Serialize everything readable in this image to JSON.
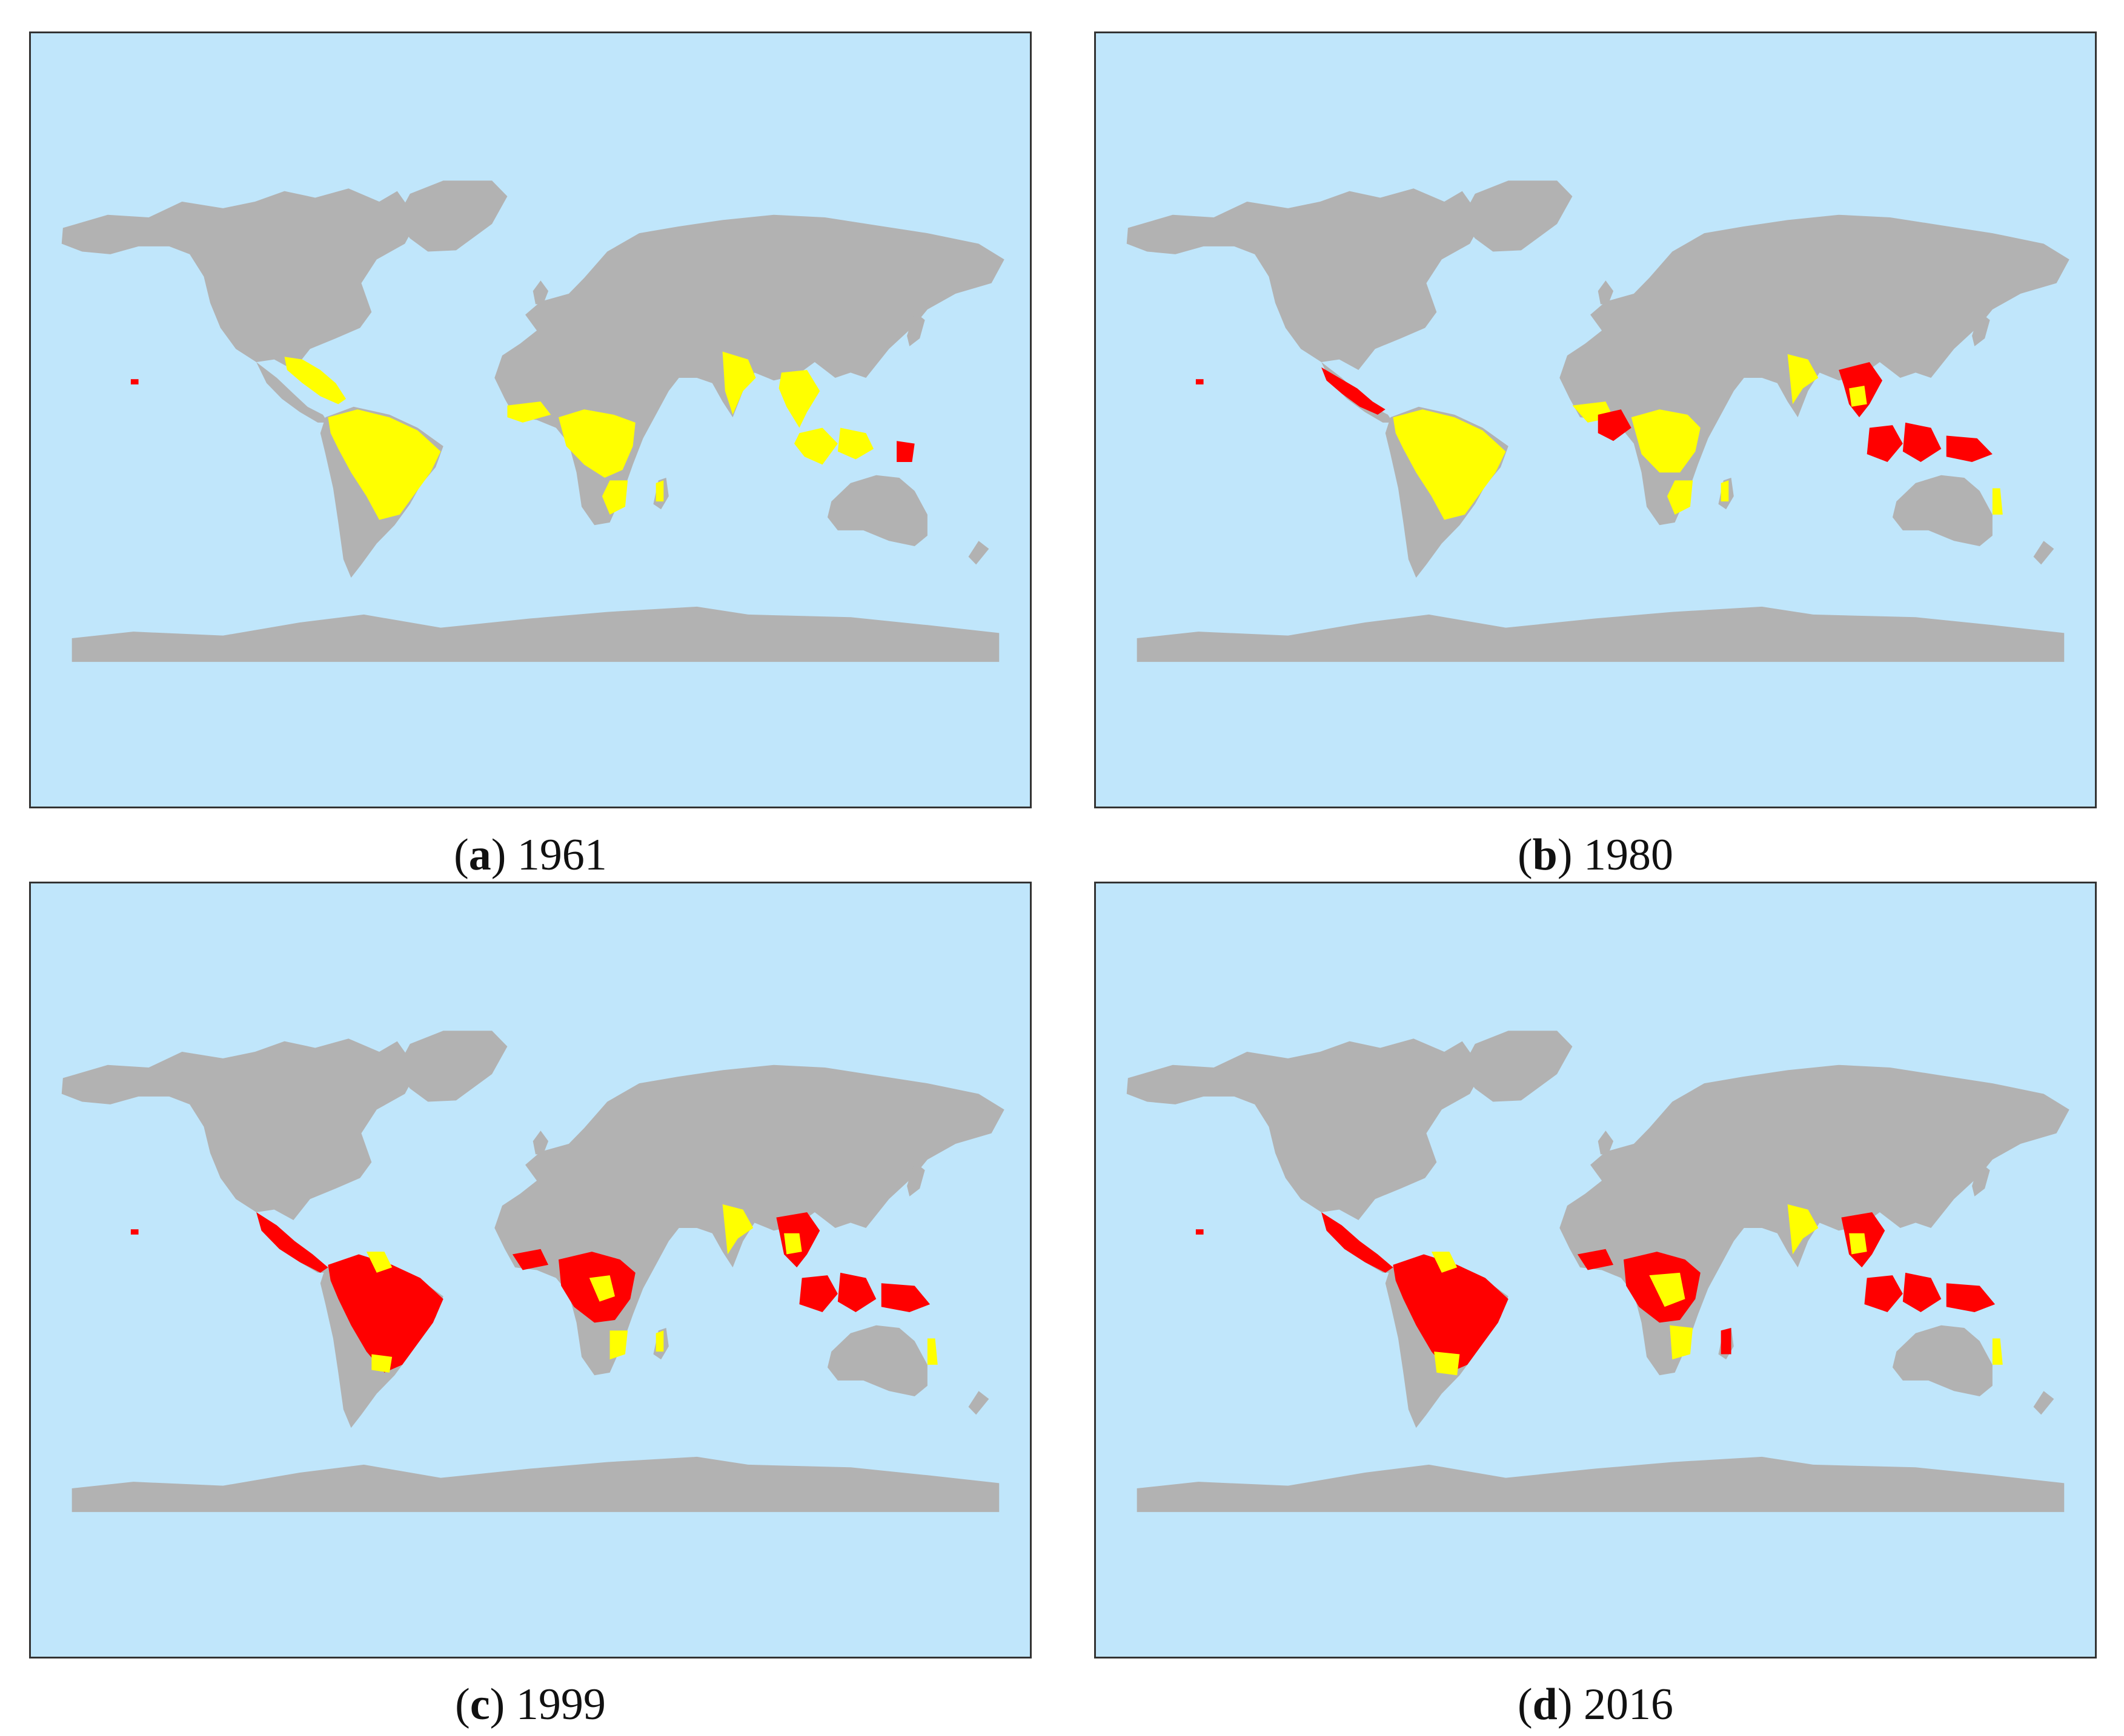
{
  "colors": {
    "ocean": "#c0e6fb",
    "land": "#b2b2b2",
    "yellow": "#ffff00",
    "red": "#ff0000"
  },
  "panels": [
    {
      "letter": "a",
      "year": "1961"
    },
    {
      "letter": "b",
      "year": "1980"
    },
    {
      "letter": "c",
      "year": "1999"
    },
    {
      "letter": "d",
      "year": "2016"
    }
  ]
}
